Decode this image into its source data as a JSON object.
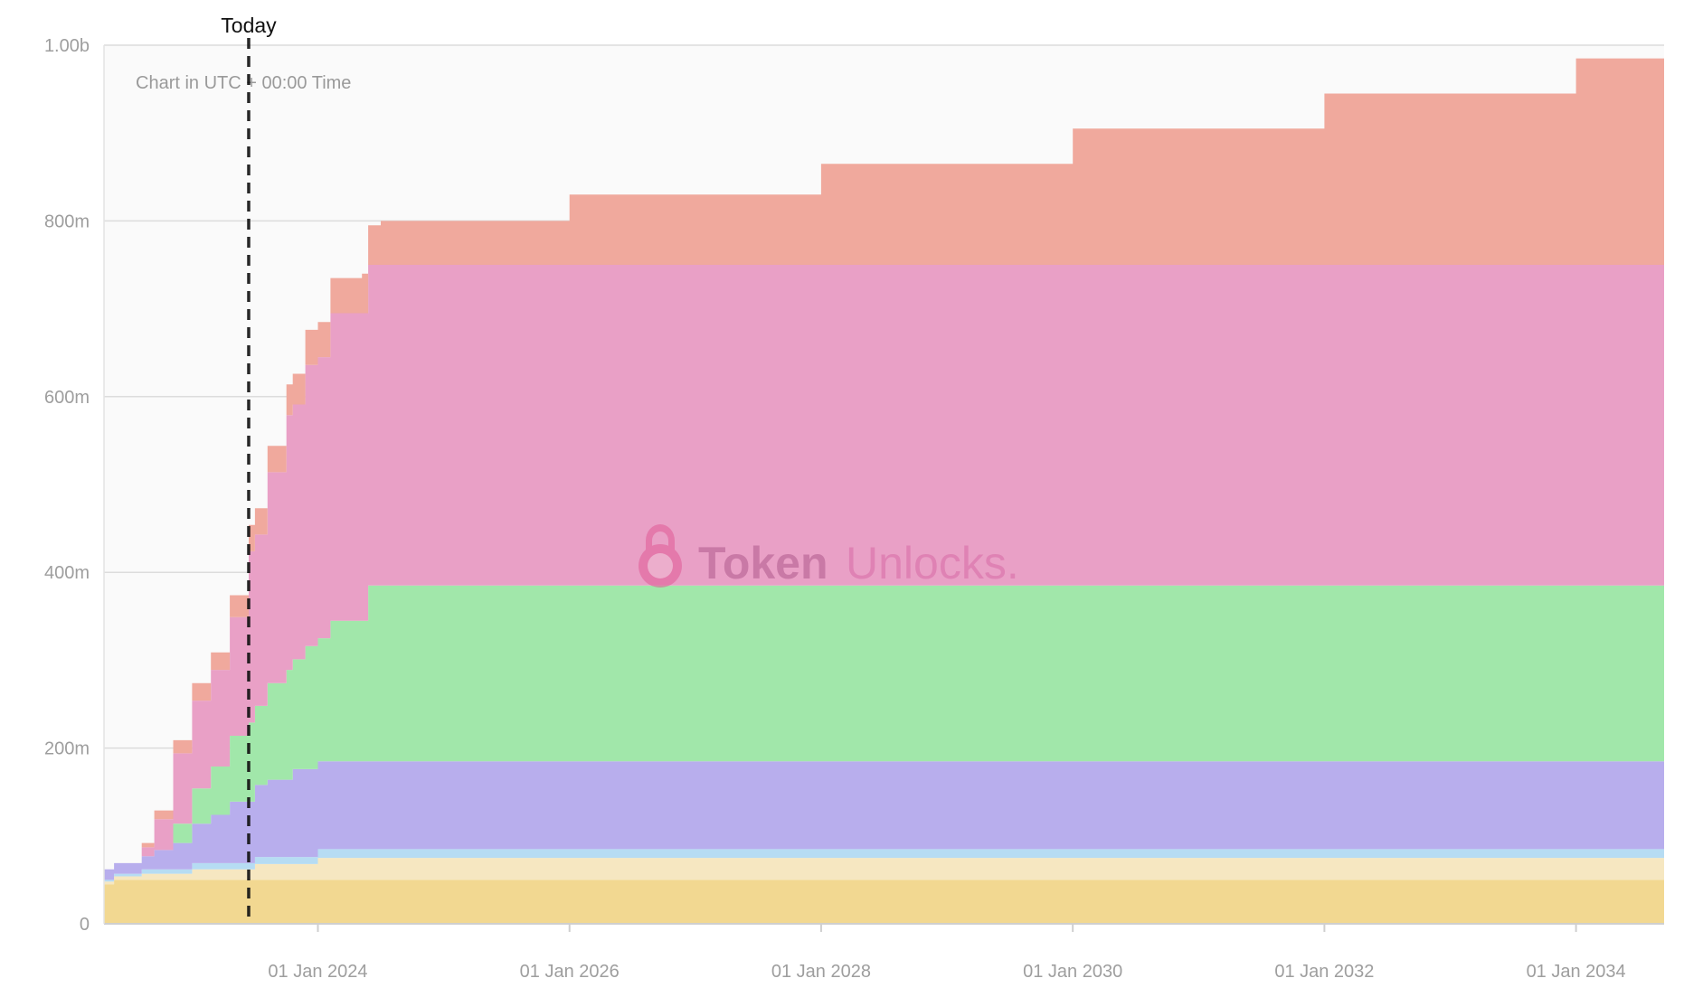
{
  "chart_data": {
    "type": "area",
    "stacked": true,
    "step": true,
    "subtitle": "Chart in UTC + 00:00 Time",
    "watermark": {
      "brand_left": "Token",
      "brand_right": "Unlocks."
    },
    "marker": {
      "label": "Today",
      "x": 2023.45
    },
    "x_range": [
      2022.3,
      2034.7
    ],
    "x_ticks": [
      {
        "x": 2024.0,
        "label": "01 Jan 2024"
      },
      {
        "x": 2026.0,
        "label": "01 Jan 2026"
      },
      {
        "x": 2028.0,
        "label": "01 Jan 2028"
      },
      {
        "x": 2030.0,
        "label": "01 Jan 2030"
      },
      {
        "x": 2032.0,
        "label": "01 Jan 2032"
      },
      {
        "x": 2034.0,
        "label": "01 Jan 2034"
      }
    ],
    "ylim": [
      0,
      1000000000
    ],
    "y_ticks": [
      {
        "value": 0,
        "label": "0"
      },
      {
        "value": 200000000,
        "label": "200m"
      },
      {
        "value": 400000000,
        "label": "400m"
      },
      {
        "value": 600000000,
        "label": "600m"
      },
      {
        "value": 800000000,
        "label": "800m"
      },
      {
        "value": 1000000000,
        "label": "1.00b"
      }
    ],
    "grid": true,
    "series": [
      {
        "color": "#f2d891",
        "x": [
          2022.3,
          2022.38,
          2034.7
        ],
        "values": [
          45,
          50,
          50
        ]
      },
      {
        "color": "#f6e7c1",
        "x": [
          2022.3,
          2022.38,
          2022.6,
          2023.0,
          2023.5,
          2024.0,
          2034.7
        ],
        "values": [
          3,
          4,
          7,
          12,
          18,
          25,
          25
        ]
      },
      {
        "color": "#b6dcf3",
        "x": [
          2022.3,
          2022.38,
          2022.6,
          2023.0,
          2023.5,
          2024.0,
          2034.7
        ],
        "values": [
          2,
          3,
          5,
          7,
          8,
          10,
          10
        ]
      },
      {
        "color": "#b8aeed",
        "x": [
          2022.3,
          2022.38,
          2022.6,
          2022.7,
          2022.85,
          2023.0,
          2023.15,
          2023.3,
          2023.5,
          2023.6,
          2023.8,
          2034.7
        ],
        "values": [
          12,
          12,
          15,
          22,
          30,
          45,
          55,
          70,
          82,
          88,
          100,
          100
        ]
      },
      {
        "color": "#a1e7aa",
        "x": [
          2022.3,
          2022.7,
          2022.85,
          2023.0,
          2023.15,
          2023.3,
          2023.45,
          2023.6,
          2023.75,
          2023.9,
          2024.1,
          2024.4,
          2034.7
        ],
        "values": [
          0,
          0,
          22,
          40,
          55,
          75,
          90,
          110,
          125,
          140,
          160,
          200,
          200
        ]
      },
      {
        "color": "#e9a0c6",
        "x": [
          2022.3,
          2022.6,
          2022.7,
          2022.85,
          2023.0,
          2023.15,
          2023.3,
          2023.45,
          2023.6,
          2023.75,
          2023.9,
          2024.1,
          2024.4,
          2034.7
        ],
        "values": [
          0,
          10,
          35,
          80,
          100,
          110,
          135,
          195,
          240,
          290,
          320,
          350,
          365,
          365
        ]
      },
      {
        "color": "#f0a99d",
        "x": [
          2022.3,
          2022.6,
          2022.7,
          2022.85,
          2023.0,
          2023.15,
          2023.3,
          2023.45,
          2023.6,
          2023.75,
          2023.9,
          2024.1,
          2024.35,
          2024.5,
          2026.0,
          2028.0,
          2030.0,
          2032.0,
          2034.0,
          2034.7
        ],
        "values": [
          0,
          5,
          10,
          15,
          20,
          20,
          25,
          30,
          30,
          35,
          40,
          40,
          45,
          50,
          80,
          115,
          155,
          195,
          235,
          250
        ]
      }
    ]
  }
}
